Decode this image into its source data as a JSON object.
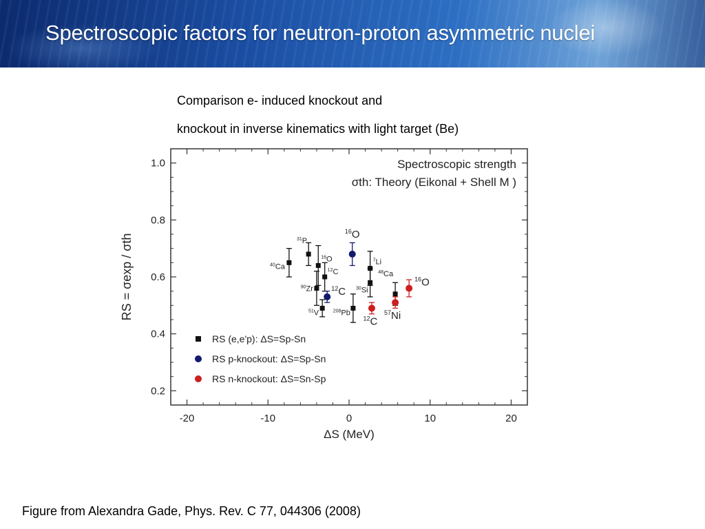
{
  "slide": {
    "title": "Spectroscopic factors for neutron-proton asymmetric nuclei",
    "caption_line1": "Comparison e- induced knockout and",
    "caption_line2": "knockout in inverse kinematics with light target (Be)",
    "footer": "Figure from Alexandra Gade, Phys. Rev. C 77, 044306 (2008)"
  },
  "chart_data": {
    "type": "scatter",
    "title": "Spectroscopic strength",
    "subtitle": "σth: Theory (Eikonal + Shell M )",
    "xlabel": "ΔS (MeV)",
    "ylabel": "RS = σexp / σth",
    "xlim": [
      -22,
      22
    ],
    "ylim": [
      0.15,
      1.05
    ],
    "xticks": [
      -20,
      -10,
      0,
      10,
      20
    ],
    "yticks": [
      0.2,
      0.4,
      0.6,
      0.8,
      1.0
    ],
    "grid": false,
    "legend_position": "bottom-left",
    "series": [
      {
        "name": "RS (e,e'p): ΔS=Sp-Sn",
        "color": "#111111",
        "marker": "square",
        "points": [
          {
            "x": -7.4,
            "y": 0.65,
            "err": 0.05,
            "label": "40Ca"
          },
          {
            "x": -5.0,
            "y": 0.68,
            "err": 0.04,
            "label": "31P"
          },
          {
            "x": -3.8,
            "y": 0.64,
            "err": 0.07,
            "label": "16O"
          },
          {
            "x": -3.0,
            "y": 0.6,
            "err": 0.05,
            "label": "12C"
          },
          {
            "x": -4.0,
            "y": 0.56,
            "err": 0.06,
            "label": "90Zr"
          },
          {
            "x": -3.3,
            "y": 0.49,
            "err": 0.03,
            "label": "51V"
          },
          {
            "x": 0.5,
            "y": 0.49,
            "err": 0.05,
            "label": "208Pb"
          },
          {
            "x": 2.6,
            "y": 0.63,
            "err": 0.06,
            "label": "7Li"
          },
          {
            "x": 2.6,
            "y": 0.58,
            "err": 0.05,
            "label": "30Si"
          },
          {
            "x": 5.7,
            "y": 0.54,
            "err": 0.04,
            "label": "48Ca"
          }
        ]
      },
      {
        "name": "RS p-knockout: ΔS=Sp-Sn",
        "color": "#121a6e",
        "marker": "circle",
        "points": [
          {
            "x": 0.4,
            "y": 0.68,
            "err": 0.04,
            "label": "16O"
          },
          {
            "x": -2.7,
            "y": 0.53,
            "err": 0.02,
            "label": "12C"
          }
        ]
      },
      {
        "name": "RS n-knockout: ΔS=Sn-Sp",
        "color": "#cc1f1f",
        "marker": "circle",
        "points": [
          {
            "x": 2.8,
            "y": 0.49,
            "err": 0.02,
            "label": "12C"
          },
          {
            "x": 5.7,
            "y": 0.51,
            "err": 0.02,
            "label": "57Ni"
          },
          {
            "x": 7.4,
            "y": 0.56,
            "err": 0.03,
            "label": "16O"
          }
        ]
      }
    ]
  }
}
